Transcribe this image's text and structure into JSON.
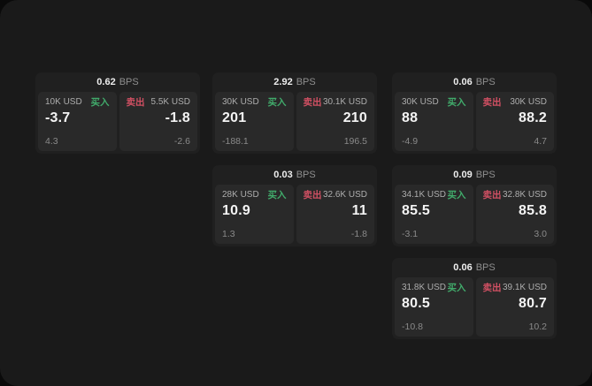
{
  "labels": {
    "bps_unit": "BPS",
    "buy": "买入",
    "sell": "卖出"
  },
  "colors": {
    "window_bg": "#1a1a1a",
    "card_bg": "#202020",
    "panel_bg": "#292929",
    "buy": "#41ab6b",
    "sell": "#d15063"
  },
  "cards": [
    {
      "bps": "0.62",
      "buy": {
        "size": "10K USD",
        "value": "-3.7",
        "sub": "4.3"
      },
      "sell": {
        "size": "5.5K USD",
        "value": "-1.8",
        "sub": "-2.6"
      }
    },
    {
      "bps": "2.92",
      "buy": {
        "size": "30K USD",
        "value": "201",
        "sub": "-188.1"
      },
      "sell": {
        "size": "30.1K USD",
        "value": "210",
        "sub": "196.5"
      }
    },
    {
      "bps": "0.06",
      "buy": {
        "size": "30K USD",
        "value": "88",
        "sub": "-4.9"
      },
      "sell": {
        "size": "30K USD",
        "value": "88.2",
        "sub": "4.7"
      }
    },
    {
      "bps": "0.03",
      "buy": {
        "size": "28K USD",
        "value": "10.9",
        "sub": "1.3"
      },
      "sell": {
        "size": "32.6K USD",
        "value": "11",
        "sub": "-1.8"
      }
    },
    {
      "bps": "0.09",
      "buy": {
        "size": "34.1K USD",
        "value": "85.5",
        "sub": "-3.1"
      },
      "sell": {
        "size": "32.8K USD",
        "value": "85.8",
        "sub": "3.0"
      }
    },
    {
      "bps": "0.06",
      "buy": {
        "size": "31.8K USD",
        "value": "80.5",
        "sub": "-10.8"
      },
      "sell": {
        "size": "39.1K USD",
        "value": "80.7",
        "sub": "10.2"
      }
    }
  ]
}
